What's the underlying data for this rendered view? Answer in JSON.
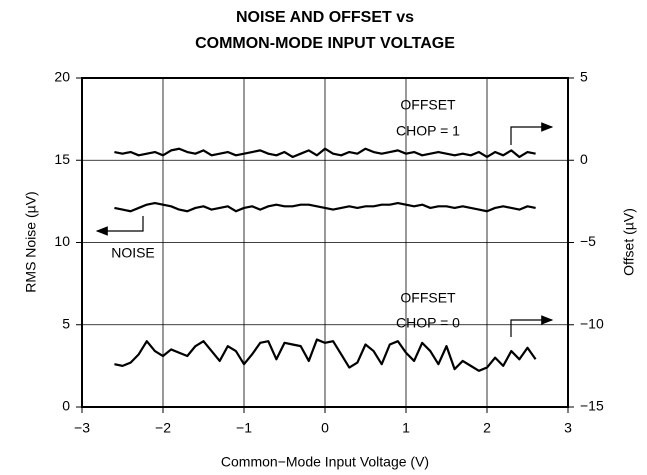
{
  "chart_data": {
    "type": "line",
    "title": [
      "NOISE AND OFFSET vs",
      "COMMON-MODE INPUT VOLTAGE"
    ],
    "xlabel": "Common−Mode Input Voltage (V)",
    "ylabel": "RMS Noise (µV)",
    "y2label": "Offset (µV)",
    "xlim": [
      -3,
      3
    ],
    "xticks": [
      {
        "value": -3,
        "label": "−3"
      },
      {
        "value": -2,
        "label": "−2"
      },
      {
        "value": -1,
        "label": "−1"
      },
      0,
      1,
      2,
      3
    ],
    "ylim": [
      0,
      20
    ],
    "yticks": [
      0,
      5,
      10,
      15,
      20
    ],
    "y2lim": [
      -15,
      5
    ],
    "y2ticks": [
      {
        "value": -15,
        "label": "−15"
      },
      {
        "value": -10,
        "label": "−10"
      },
      {
        "value": -5,
        "label": "−5"
      },
      0,
      5
    ],
    "grid": true,
    "x": [
      -2.6,
      -2.5,
      -2.4,
      -2.3,
      -2.2,
      -2.1,
      -2.0,
      -1.9,
      -1.8,
      -1.7,
      -1.6,
      -1.5,
      -1.4,
      -1.3,
      -1.2,
      -1.1,
      -1.0,
      -0.9,
      -0.8,
      -0.7,
      -0.6,
      -0.5,
      -0.4,
      -0.3,
      -0.2,
      -0.1,
      0.0,
      0.1,
      0.2,
      0.3,
      0.4,
      0.5,
      0.6,
      0.7,
      0.8,
      0.9,
      1.0,
      1.1,
      1.2,
      1.3,
      1.4,
      1.5,
      1.6,
      1.7,
      1.8,
      1.9,
      2.0,
      2.1,
      2.2,
      2.3,
      2.4,
      2.5,
      2.6
    ],
    "series": [
      {
        "name": "NOISE",
        "color": "#000000",
        "values": [
          12.1,
          12.0,
          11.9,
          12.1,
          12.3,
          12.4,
          12.3,
          12.2,
          12.0,
          11.9,
          12.1,
          12.2,
          12.0,
          12.1,
          12.2,
          11.9,
          12.1,
          12.2,
          12.0,
          12.2,
          12.3,
          12.2,
          12.2,
          12.3,
          12.3,
          12.2,
          12.1,
          12.0,
          12.1,
          12.2,
          12.1,
          12.2,
          12.2,
          12.3,
          12.3,
          12.4,
          12.3,
          12.2,
          12.3,
          12.1,
          12.2,
          12.2,
          12.1,
          12.2,
          12.1,
          12.0,
          11.9,
          12.1,
          12.2,
          12.1,
          12.0,
          12.2,
          12.1
        ]
      },
      {
        "name": "CHOP = 1",
        "color": "#000000",
        "axis": "y2",
        "values": [
          0.5,
          0.4,
          0.5,
          0.3,
          0.4,
          0.5,
          0.3,
          0.6,
          0.7,
          0.5,
          0.4,
          0.6,
          0.3,
          0.4,
          0.5,
          0.3,
          0.4,
          0.5,
          0.6,
          0.4,
          0.3,
          0.5,
          0.2,
          0.4,
          0.6,
          0.3,
          0.7,
          0.4,
          0.3,
          0.5,
          0.4,
          0.7,
          0.5,
          0.4,
          0.5,
          0.6,
          0.4,
          0.5,
          0.3,
          0.4,
          0.5,
          0.4,
          0.3,
          0.4,
          0.3,
          0.5,
          0.2,
          0.5,
          0.3,
          0.6,
          0.2,
          0.5,
          0.4
        ]
      },
      {
        "name": "CHOP = 0",
        "color": "#000000",
        "axis": "y2",
        "values": [
          -12.4,
          -12.5,
          -12.3,
          -11.8,
          -11.0,
          -11.6,
          -11.9,
          -11.5,
          -11.7,
          -11.9,
          -11.3,
          -11.0,
          -11.6,
          -12.2,
          -11.3,
          -11.6,
          -12.4,
          -11.8,
          -11.1,
          -11.0,
          -12.1,
          -11.1,
          -11.2,
          -11.3,
          -12.2,
          -10.9,
          -11.1,
          -11.0,
          -11.8,
          -12.6,
          -12.3,
          -11.2,
          -11.6,
          -12.4,
          -11.2,
          -11.0,
          -11.7,
          -12.2,
          -11.1,
          -11.6,
          -12.4,
          -11.3,
          -12.7,
          -12.2,
          -12.5,
          -12.8,
          -12.6,
          -12.0,
          -12.5,
          -11.6,
          -12.1,
          -11.4,
          -12.1
        ]
      }
    ],
    "annotations": [
      "OFFSET",
      "OFFSET"
    ]
  }
}
